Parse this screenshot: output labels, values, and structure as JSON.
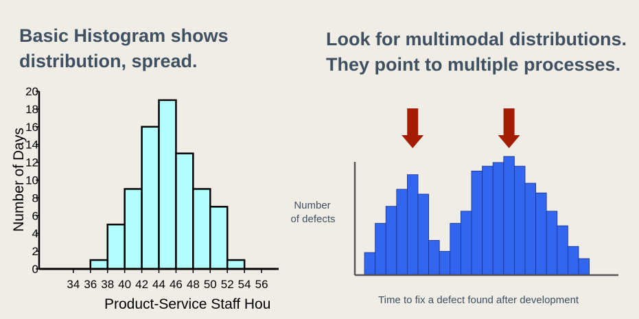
{
  "slide": {
    "left_heading": [
      "Basic Histogram shows",
      "distribution, spread."
    ],
    "right_heading": [
      "Look for multimodal distributions.",
      "They point to multiple processes."
    ]
  },
  "colors": {
    "background": "#efede6",
    "heading_text": "#3f5060",
    "histogram_fill": "#b3ffff",
    "histogram_stroke": "#000000",
    "multimodal_fill": "#3366ee",
    "multimodal_stroke": "#1a2f88",
    "arrow": "#a51d00",
    "axis_gray": "#555555"
  },
  "chart_data": [
    {
      "type": "bar",
      "id": "staff-hours-histogram",
      "title": "",
      "xlabel": "Product-Service Staff Hou",
      "ylabel": "Number of Days",
      "x_ticks": [
        "34",
        "36",
        "38",
        "40",
        "42",
        "44",
        "46",
        "48",
        "50",
        "52",
        "54",
        "56"
      ],
      "y_ticks": [
        "0",
        "2",
        "4",
        "6",
        "8",
        "10",
        "12",
        "14",
        "16",
        "18",
        "20"
      ],
      "xlim": [
        30,
        58
      ],
      "ylim": [
        0,
        20
      ],
      "bin_width": 2,
      "bins": [
        {
          "start": 30,
          "value": 0
        },
        {
          "start": 32,
          "value": 0
        },
        {
          "start": 34,
          "value": 0
        },
        {
          "start": 36,
          "value": 1
        },
        {
          "start": 38,
          "value": 5
        },
        {
          "start": 40,
          "value": 9
        },
        {
          "start": 42,
          "value": 16
        },
        {
          "start": 44,
          "value": 19
        },
        {
          "start": 46,
          "value": 13
        },
        {
          "start": 48,
          "value": 9
        },
        {
          "start": 50,
          "value": 7
        },
        {
          "start": 52,
          "value": 1
        },
        {
          "start": 54,
          "value": 0
        },
        {
          "start": 56,
          "value": 0
        }
      ],
      "grid": false,
      "legend": "none"
    },
    {
      "type": "bar",
      "id": "multimodal-histogram",
      "title": "",
      "xlabel": "Time to fix a defect found after development",
      "ylabel": [
        "Number",
        "of defects"
      ],
      "ylim": [
        0,
        100
      ],
      "values": [
        18,
        42,
        56,
        70,
        82,
        66,
        28,
        19,
        42,
        52,
        85,
        89,
        92,
        97,
        89,
        75,
        67,
        52,
        40,
        23,
        13
      ],
      "arrows_at_index": [
        4,
        13
      ],
      "grid": false,
      "legend": "none"
    }
  ]
}
